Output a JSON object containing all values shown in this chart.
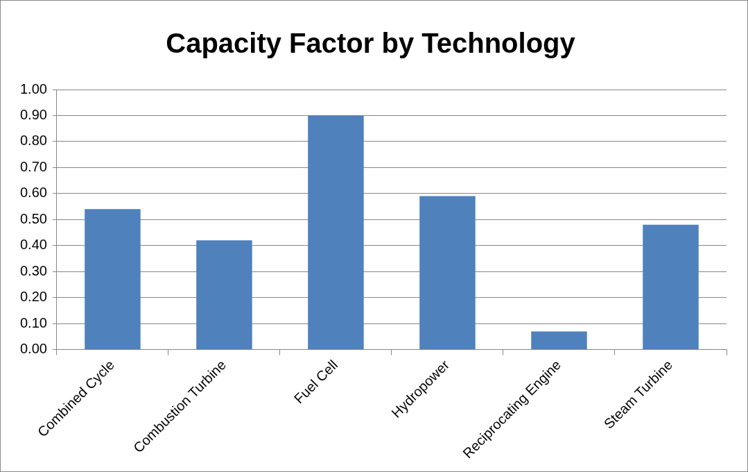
{
  "chart_data": {
    "type": "bar",
    "title": "Capacity Factor by Technology",
    "categories": [
      "Combined Cycle",
      "Combustion Turbine",
      "Fuel Cell",
      "Hydropower",
      "Reciprocating Engine",
      "Steam Turbine"
    ],
    "values": [
      0.54,
      0.42,
      0.9,
      0.59,
      0.07,
      0.48
    ],
    "color": "#4f81bd",
    "ylim": [
      0,
      1
    ],
    "yticks": [
      {
        "value": 0,
        "label": "0.00"
      },
      {
        "value": 0.1,
        "label": "0.10"
      },
      {
        "value": 0.2,
        "label": "0.20"
      },
      {
        "value": 0.3,
        "label": "0.30"
      },
      {
        "value": 0.4,
        "label": "0.40"
      },
      {
        "value": 0.5,
        "label": "0.50"
      },
      {
        "value": 0.6,
        "label": "0.60"
      },
      {
        "value": 0.7,
        "label": "0.70"
      },
      {
        "value": 0.8,
        "label": "0.80"
      },
      {
        "value": 0.9,
        "label": "0.90"
      },
      {
        "value": 1,
        "label": "1.00"
      }
    ],
    "grid": "y",
    "legend": false
  }
}
